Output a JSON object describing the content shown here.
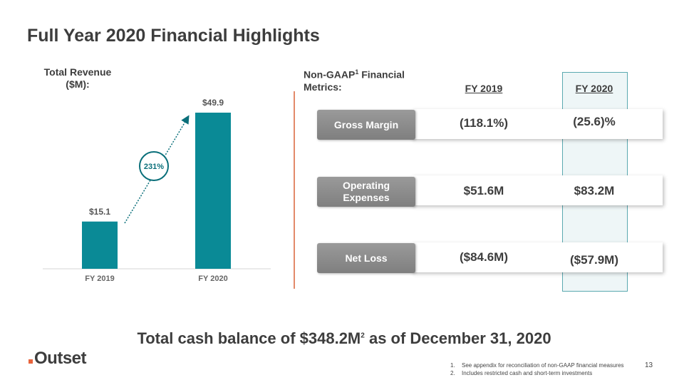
{
  "title": "Full Year 2020 Financial Highlights",
  "chart_data": {
    "type": "bar",
    "title": "Total Revenue ($M):",
    "categories": [
      "FY 2019",
      "FY 2020"
    ],
    "values": [
      15.1,
      49.9
    ],
    "value_labels": [
      "$15.1",
      "$49.9"
    ],
    "color": "#0a8a96",
    "annotation": "231%"
  },
  "metrics": {
    "heading": {
      "text": "Non-GAAP",
      "sup": "1",
      "rest": "Financial Metrics:"
    },
    "columns": [
      "FY 2019",
      "FY 2020"
    ],
    "rows": [
      {
        "label": "Gross Margin",
        "values": [
          "(118.1%)",
          "(25.6)%"
        ]
      },
      {
        "label": "Operating Expenses",
        "values": [
          "$51.6M",
          "$83.2M"
        ]
      },
      {
        "label": "Net Loss",
        "values": [
          "($84.6M)",
          "($57.9M)"
        ]
      }
    ]
  },
  "cash": {
    "text": "Total cash balance of $348.2M",
    "sup": "2",
    "rest": "as of December 31, 2020"
  },
  "logo": "Outset",
  "footnotes": [
    {
      "marker": "1.",
      "text": "See appendix for reconciliation of non-GAAP financial measures"
    },
    {
      "marker": "2.",
      "text": "Includes restricted cash and short-term investments"
    }
  ],
  "page_number": "13"
}
